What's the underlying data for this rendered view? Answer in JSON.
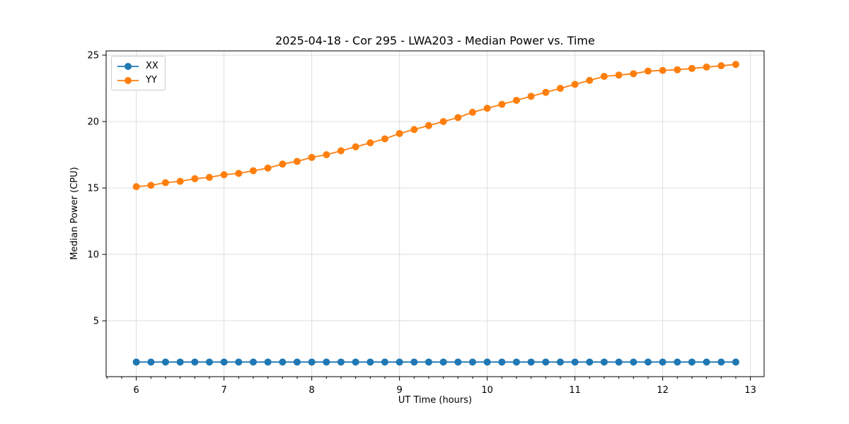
{
  "chart_data": {
    "type": "line",
    "title": "2025-04-18 - Cor 295 - LWA203 - Median Power vs. Time",
    "xlabel": "UT Time (hours)",
    "ylabel": "Median Power (CPU)",
    "xlim": [
      5.656,
      13.156
    ],
    "ylim": [
      0.8,
      25.32
    ],
    "xticks": [
      6,
      7,
      8,
      9,
      10,
      11,
      12,
      13
    ],
    "yticks": [
      5,
      10,
      15,
      20,
      25
    ],
    "x_minor_tick_step": 0.1666667,
    "grid": true,
    "grid_color": "#dcdcdc",
    "background_color": "#ffffff",
    "legend_position": "upper-left",
    "x": [
      6.0,
      6.167,
      6.333,
      6.5,
      6.667,
      6.833,
      7.0,
      7.167,
      7.333,
      7.5,
      7.667,
      7.833,
      8.0,
      8.167,
      8.333,
      8.5,
      8.667,
      8.833,
      9.0,
      9.167,
      9.333,
      9.5,
      9.667,
      9.833,
      10.0,
      10.167,
      10.333,
      10.5,
      10.667,
      10.833,
      11.0,
      11.167,
      11.333,
      11.5,
      11.667,
      11.833,
      12.0,
      12.167,
      12.333,
      12.5,
      12.667,
      12.833
    ],
    "series": [
      {
        "name": "XX",
        "color": "#1f77b4",
        "values": [
          1.9,
          1.9,
          1.9,
          1.9,
          1.9,
          1.9,
          1.9,
          1.9,
          1.9,
          1.9,
          1.9,
          1.9,
          1.9,
          1.9,
          1.9,
          1.9,
          1.9,
          1.9,
          1.9,
          1.9,
          1.9,
          1.9,
          1.9,
          1.9,
          1.9,
          1.9,
          1.9,
          1.9,
          1.9,
          1.9,
          1.9,
          1.9,
          1.9,
          1.9,
          1.9,
          1.9,
          1.9,
          1.9,
          1.9,
          1.9,
          1.9,
          1.9
        ]
      },
      {
        "name": "YY",
        "color": "#ff7f0e",
        "values": [
          15.1,
          15.2,
          15.4,
          15.5,
          15.7,
          15.8,
          16.0,
          16.1,
          16.3,
          16.5,
          16.8,
          17.0,
          17.3,
          17.5,
          17.8,
          18.1,
          18.4,
          18.7,
          19.1,
          19.4,
          19.7,
          20.0,
          20.3,
          20.7,
          21.0,
          21.3,
          21.6,
          21.9,
          22.2,
          22.5,
          22.8,
          23.1,
          23.4,
          23.5,
          23.6,
          23.8,
          23.85,
          23.9,
          24.0,
          24.1,
          24.2,
          24.3
        ]
      }
    ]
  }
}
